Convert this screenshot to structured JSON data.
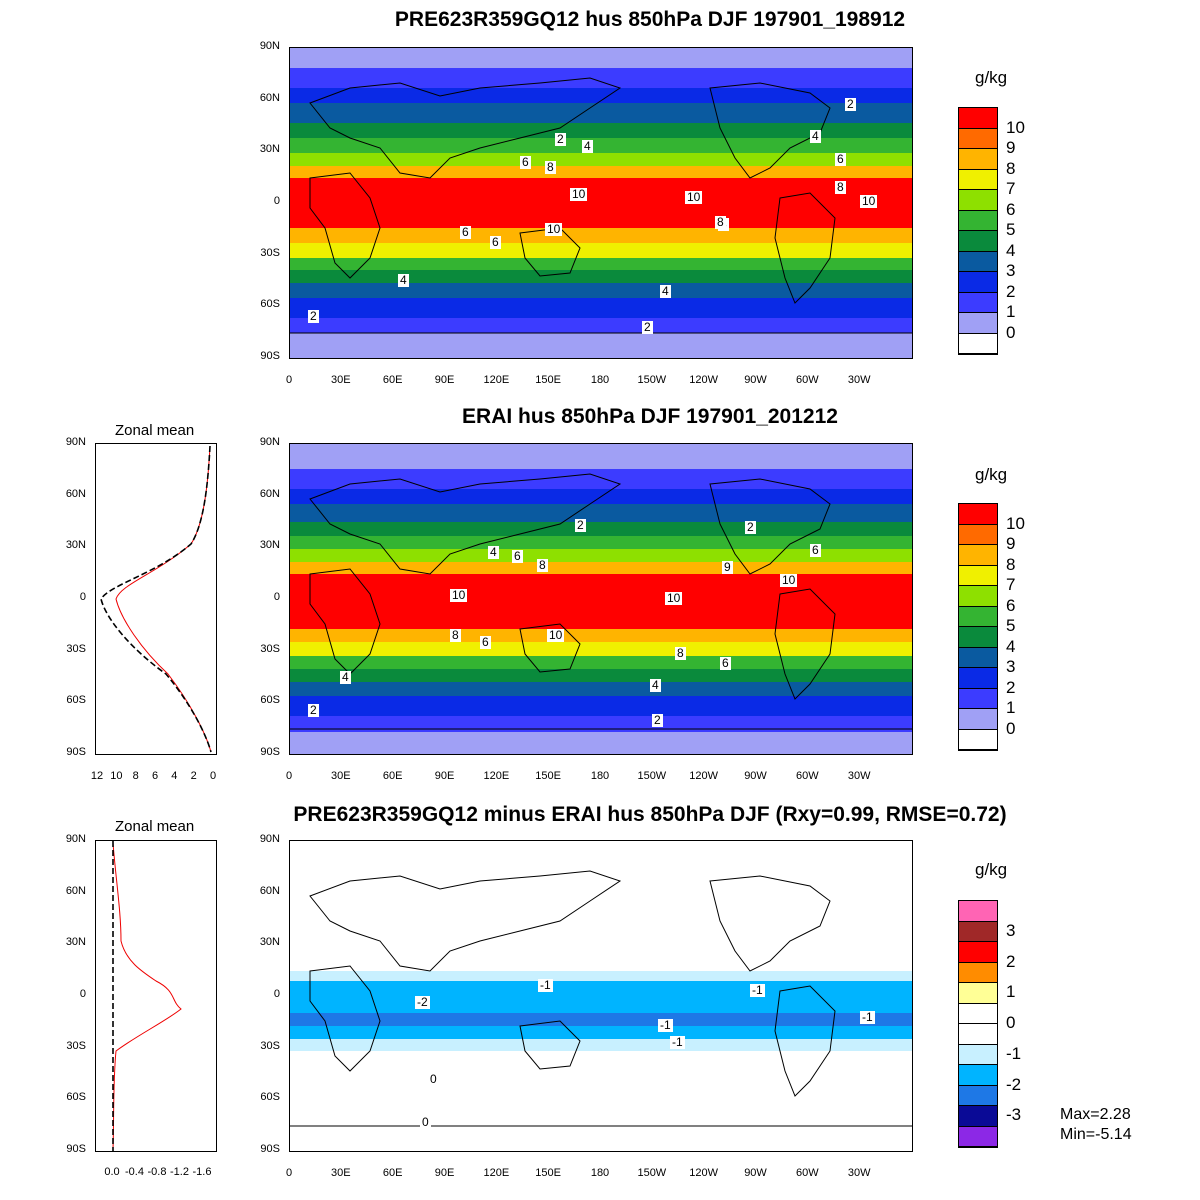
{
  "panels": [
    {
      "id": "model",
      "title": "PRE623R359GQ12 hus 850hPa DJF 197901_198912",
      "unit": "g/kg",
      "colorbar_labels": [
        "10",
        "9",
        "8",
        "7",
        "6",
        "5",
        "4",
        "3",
        "2",
        "1",
        "0"
      ],
      "colorbar_colors": [
        "#ff0000",
        "#ff6a00",
        "#ffb400",
        "#f0f000",
        "#8ee000",
        "#34b432",
        "#0a8a3c",
        "#0a5aa0",
        "#0a2ae6",
        "#3c3cff",
        "#a0a0f5",
        "#ffffff"
      ],
      "contour_labels": [
        "2",
        "4",
        "2",
        "6",
        "8",
        "4",
        "6",
        "10",
        "10",
        "8",
        "8",
        "6",
        "10",
        "4",
        "4",
        "2",
        "2",
        "8",
        "6",
        "10"
      ]
    },
    {
      "id": "obs",
      "title": "ERAI hus 850hPa DJF 197901_201212",
      "unit": "g/kg",
      "colorbar_labels": [
        "10",
        "9",
        "8",
        "7",
        "6",
        "5",
        "4",
        "3",
        "2",
        "1",
        "0"
      ],
      "colorbar_colors": [
        "#ff0000",
        "#ff6a00",
        "#ffb400",
        "#f0f000",
        "#8ee000",
        "#34b432",
        "#0a8a3c",
        "#0a5aa0",
        "#0a2ae6",
        "#3c3cff",
        "#a0a0f5",
        "#ffffff"
      ],
      "contour_labels": [
        "2",
        "2",
        "6",
        "4",
        "6",
        "8",
        "10",
        "10",
        "9",
        "10",
        "8",
        "6",
        "10",
        "8",
        "6",
        "4",
        "4",
        "2",
        "2"
      ],
      "zonal_title": "Zonal mean",
      "zonal_xticks": [
        "12",
        "10",
        "8",
        "6",
        "4",
        "2",
        "0"
      ]
    },
    {
      "id": "diff",
      "title": "PRE623R359GQ12 minus ERAI hus 850hPa DJF (Rxy=0.99, RMSE=0.72)",
      "unit": "g/kg",
      "colorbar_labels": [
        "3",
        "2",
        "1",
        "0",
        "-1",
        "-2",
        "-3"
      ],
      "colorbar_colors": [
        "#ff64b4",
        "#a02828",
        "#ff0000",
        "#ff8c00",
        "#ffff96",
        "#ffffff",
        "#ffffff",
        "#c8f0ff",
        "#00b4ff",
        "#1e78e6",
        "#0a0a96",
        "#8c28e6"
      ],
      "contour_labels": [
        "-1",
        "-2",
        "-1",
        "-1",
        "-1",
        "-1",
        "0",
        "0"
      ],
      "zonal_title": "Zonal mean",
      "zonal_xticks": [
        "0.0",
        "-0.4",
        "-0.8",
        "-1.2",
        "-1.6"
      ],
      "stats": {
        "max": "Max=2.28",
        "min": "Min=-5.14"
      }
    }
  ],
  "lat_ticks": [
    "90N",
    "60N",
    "30N",
    "0",
    "30S",
    "60S",
    "90S"
  ],
  "lon_ticks": [
    "0",
    "30E",
    "60E",
    "90E",
    "120E",
    "150E",
    "180",
    "150W",
    "120W",
    "90W",
    "60W",
    "30W"
  ],
  "zonal_lat_ticks": [
    "90N",
    "60N",
    "30N",
    "0",
    "30S",
    "60S",
    "90S"
  ]
}
